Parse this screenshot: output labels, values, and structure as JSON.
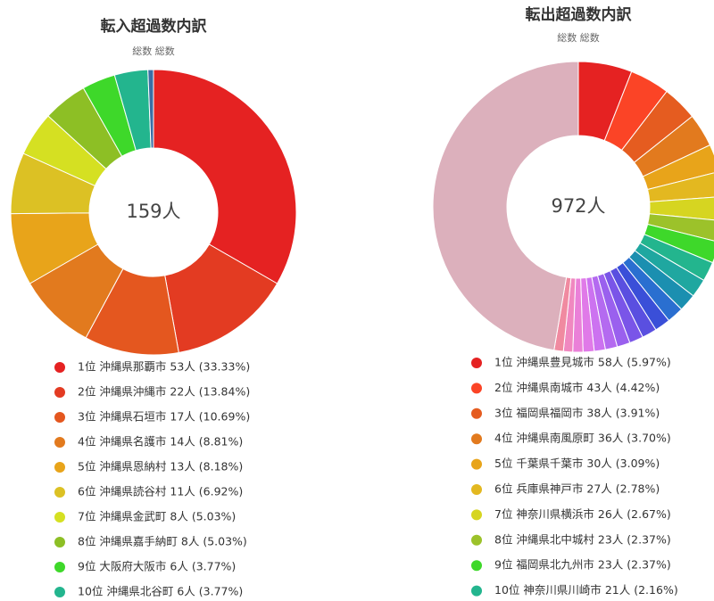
{
  "chart_data": [
    {
      "type": "pie",
      "title": "転入超過数内訳",
      "subtitle": "総数 総数",
      "center_label": "159人",
      "categories": [
        "1位 沖縄県那覇市 53人 (33.33%)",
        "2位 沖縄県沖縄市 22人 (13.84%)",
        "3位 沖縄県石垣市 17人 (10.69%)",
        "4位 沖縄県名護市 14人 (8.81%)",
        "5位 沖縄県恩納村 13人 (8.18%)",
        "6位 沖縄県読谷村 11人 (6.92%)",
        "7位 沖縄県金武町 8人 (5.03%)",
        "8位 沖縄県嘉手納町 8人 (5.03%)",
        "9位 大阪府大阪市 6人 (3.77%)",
        "10位 沖縄県北谷町 6人 (3.77%)",
        null
      ],
      "values": [
        53,
        22,
        17,
        14,
        13,
        11,
        8,
        8,
        6,
        6,
        1
      ],
      "colors": [
        "#e52222",
        "#e33b22",
        "#e4571f",
        "#e27a1e",
        "#e8a41a",
        "#dcc124",
        "#d5e022",
        "#8dbf25",
        "#3ed82a",
        "#23b58e",
        "#3a6ea5"
      ]
    },
    {
      "type": "pie",
      "title": "転出超過数内訳",
      "subtitle": "総数 総数",
      "center_label": "972人",
      "categories": [
        "1位 沖縄県豊見城市 58人 (5.97%)",
        "2位 沖縄県南城市 43人 (4.42%)",
        "3位 福岡県福岡市 38人 (3.91%)",
        "4位 沖縄県南風原町 36人 (3.70%)",
        "5位 千葉県千葉市 30人 (3.09%)",
        "6位 兵庫県神戸市 27人 (2.78%)",
        "7位 神奈川県横浜市 26人 (2.67%)",
        "8位 沖縄県北中城村 23人 (2.37%)",
        "9位 福岡県北九州市 23人 (2.37%)",
        "10位 神奈川県川崎市 21人 (2.16%)",
        null,
        null,
        null,
        null,
        null,
        null,
        null,
        null,
        null,
        null,
        null,
        null,
        null,
        null
      ],
      "values": [
        58,
        43,
        38,
        36,
        30,
        27,
        26,
        23,
        23,
        21,
        20,
        19,
        18,
        17,
        16,
        15,
        14,
        13,
        12,
        12,
        11,
        10,
        10,
        460
      ],
      "colors": [
        "#e52222",
        "#fb4426",
        "#e55c20",
        "#e27a1e",
        "#e8a41a",
        "#e3b820",
        "#d6d521",
        "#9cc22a",
        "#3ed82a",
        "#23b58e",
        "#1fa7a0",
        "#1b8fb0",
        "#2a6fd0",
        "#3a4fd8",
        "#5a4fe0",
        "#7a55e8",
        "#9a60ee",
        "#b46af0",
        "#cc72f0",
        "#e07ae8",
        "#ea80d8",
        "#f088c0",
        "#f08aa0",
        "#dcb0bc"
      ]
    }
  ]
}
